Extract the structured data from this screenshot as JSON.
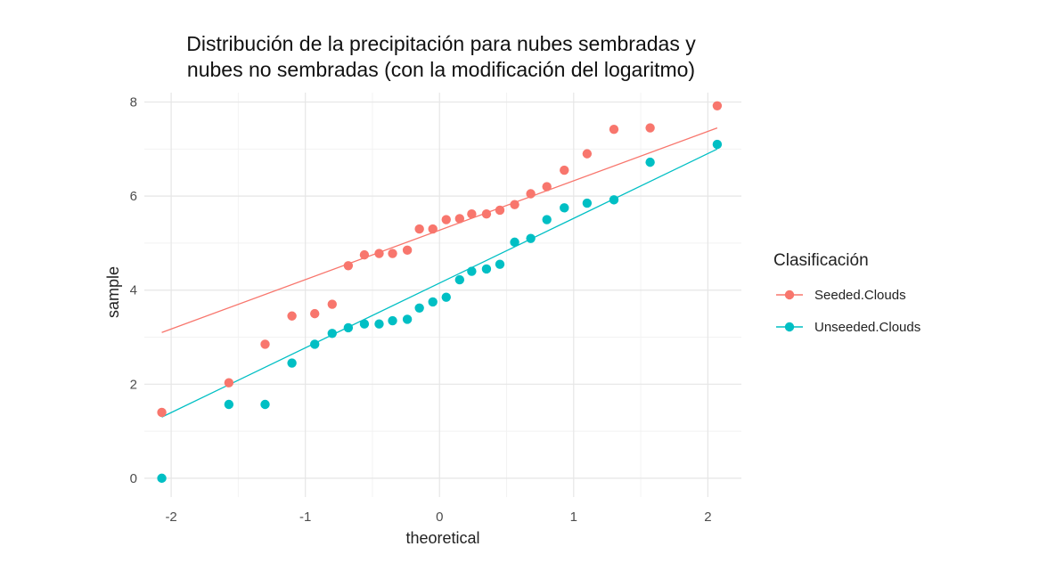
{
  "chart_data": {
    "type": "scatter",
    "title_lines": [
      "Distribución de la precipitación para nubes sembradas y",
      "nubes no sembradas (con la modificación del logaritmo)"
    ],
    "xlabel": "theoretical",
    "ylabel": "sample",
    "xlim": [
      -2.2,
      2.25
    ],
    "ylim": [
      -0.4,
      8.2
    ],
    "x_ticks": [
      -2,
      -1,
      0,
      1,
      2
    ],
    "x_tick_labels": [
      "-2",
      "-1",
      "0",
      "1",
      "2"
    ],
    "y_ticks": [
      0,
      2,
      4,
      6,
      8
    ],
    "y_tick_labels": [
      "0",
      "2",
      "4",
      "6",
      "8"
    ],
    "grid": true,
    "legend": {
      "title": "Clasificación",
      "position": "right"
    },
    "series": [
      {
        "name": "Seeded.Clouds",
        "color": "#F8766D",
        "points": [
          [
            -2.07,
            1.4
          ],
          [
            -1.57,
            2.03
          ],
          [
            -1.3,
            2.85
          ],
          [
            -1.1,
            3.45
          ],
          [
            -0.93,
            3.5
          ],
          [
            -0.8,
            3.7
          ],
          [
            -0.68,
            4.52
          ],
          [
            -0.56,
            4.75
          ],
          [
            -0.45,
            4.78
          ],
          [
            -0.35,
            4.78
          ],
          [
            -0.24,
            4.85
          ],
          [
            -0.15,
            5.3
          ],
          [
            -0.05,
            5.3
          ],
          [
            0.05,
            5.5
          ],
          [
            0.15,
            5.52
          ],
          [
            0.24,
            5.62
          ],
          [
            0.35,
            5.62
          ],
          [
            0.45,
            5.7
          ],
          [
            0.56,
            5.82
          ],
          [
            0.68,
            6.05
          ],
          [
            0.8,
            6.2
          ],
          [
            0.93,
            6.55
          ],
          [
            1.1,
            6.9
          ],
          [
            1.3,
            7.42
          ],
          [
            1.57,
            7.45
          ],
          [
            2.07,
            7.92
          ]
        ],
        "qq_line": [
          [
            -2.07,
            3.1
          ],
          [
            2.07,
            7.45
          ]
        ]
      },
      {
        "name": "Unseeded.Clouds",
        "color": "#00BFC4",
        "points": [
          [
            -2.07,
            0.0
          ],
          [
            -1.57,
            1.57
          ],
          [
            -1.3,
            1.57
          ],
          [
            -1.1,
            2.45
          ],
          [
            -0.93,
            2.85
          ],
          [
            -0.8,
            3.08
          ],
          [
            -0.68,
            3.2
          ],
          [
            -0.56,
            3.28
          ],
          [
            -0.45,
            3.28
          ],
          [
            -0.35,
            3.35
          ],
          [
            -0.24,
            3.38
          ],
          [
            -0.15,
            3.62
          ],
          [
            -0.05,
            3.75
          ],
          [
            0.05,
            3.85
          ],
          [
            0.15,
            4.22
          ],
          [
            0.24,
            4.4
          ],
          [
            0.35,
            4.45
          ],
          [
            0.45,
            4.55
          ],
          [
            0.56,
            5.02
          ],
          [
            0.68,
            5.1
          ],
          [
            0.8,
            5.5
          ],
          [
            0.93,
            5.75
          ],
          [
            1.1,
            5.85
          ],
          [
            1.3,
            5.92
          ],
          [
            1.57,
            6.72
          ],
          [
            2.07,
            7.1
          ]
        ],
        "qq_line": [
          [
            -2.07,
            1.3
          ],
          [
            2.07,
            7.0
          ]
        ]
      }
    ]
  }
}
